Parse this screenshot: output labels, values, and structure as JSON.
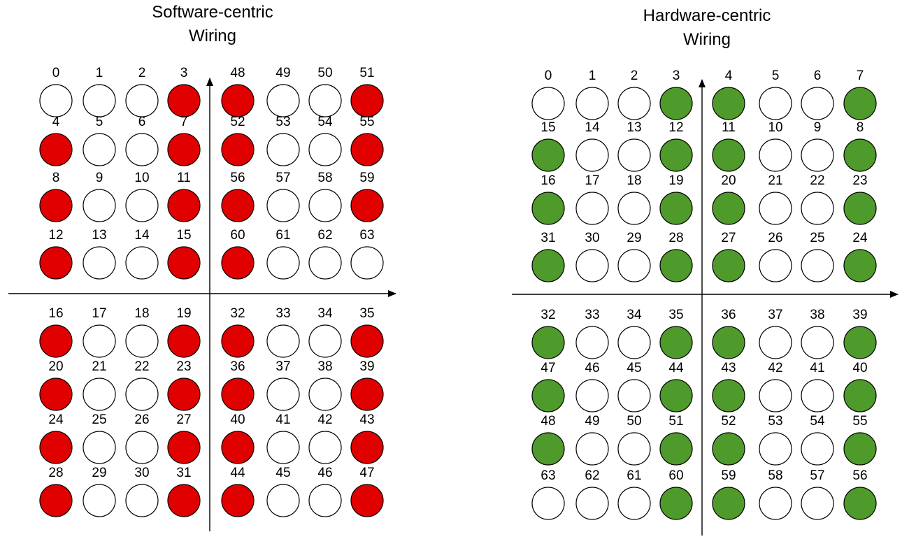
{
  "colors": {
    "red": "#e00000",
    "green": "#4e9a2b",
    "off": "#ffffff",
    "stroke": "#000000"
  },
  "panels": [
    {
      "id": "software",
      "title_line1": "Software-centric",
      "title_line2": "Wiring",
      "active_color": "red",
      "quadrants": [
        {
          "cells": [
            {
              "n": "0",
              "on": false
            },
            {
              "n": "1",
              "on": false
            },
            {
              "n": "2",
              "on": false
            },
            {
              "n": "3",
              "on": true
            },
            {
              "n": "4",
              "on": true
            },
            {
              "n": "5",
              "on": false
            },
            {
              "n": "6",
              "on": false
            },
            {
              "n": "7",
              "on": true
            },
            {
              "n": "8",
              "on": true
            },
            {
              "n": "9",
              "on": false
            },
            {
              "n": "10",
              "on": false
            },
            {
              "n": "11",
              "on": true
            },
            {
              "n": "12",
              "on": true
            },
            {
              "n": "13",
              "on": false
            },
            {
              "n": "14",
              "on": false
            },
            {
              "n": "15",
              "on": true
            }
          ]
        },
        {
          "cells": [
            {
              "n": "48",
              "on": true
            },
            {
              "n": "49",
              "on": false
            },
            {
              "n": "50",
              "on": false
            },
            {
              "n": "51",
              "on": true
            },
            {
              "n": "52",
              "on": true
            },
            {
              "n": "53",
              "on": false
            },
            {
              "n": "54",
              "on": false
            },
            {
              "n": "55",
              "on": true
            },
            {
              "n": "56",
              "on": true
            },
            {
              "n": "57",
              "on": false
            },
            {
              "n": "58",
              "on": false
            },
            {
              "n": "59",
              "on": true
            },
            {
              "n": "60",
              "on": true
            },
            {
              "n": "61",
              "on": false
            },
            {
              "n": "62",
              "on": false
            },
            {
              "n": "63",
              "on": false
            }
          ]
        },
        {
          "cells": [
            {
              "n": "16",
              "on": true
            },
            {
              "n": "17",
              "on": false
            },
            {
              "n": "18",
              "on": false
            },
            {
              "n": "19",
              "on": true
            },
            {
              "n": "20",
              "on": true
            },
            {
              "n": "21",
              "on": false
            },
            {
              "n": "22",
              "on": false
            },
            {
              "n": "23",
              "on": true
            },
            {
              "n": "24",
              "on": true
            },
            {
              "n": "25",
              "on": false
            },
            {
              "n": "26",
              "on": false
            },
            {
              "n": "27",
              "on": true
            },
            {
              "n": "28",
              "on": true
            },
            {
              "n": "29",
              "on": false
            },
            {
              "n": "30",
              "on": false
            },
            {
              "n": "31",
              "on": true
            }
          ]
        },
        {
          "cells": [
            {
              "n": "32",
              "on": true
            },
            {
              "n": "33",
              "on": false
            },
            {
              "n": "34",
              "on": false
            },
            {
              "n": "35",
              "on": true
            },
            {
              "n": "36",
              "on": true
            },
            {
              "n": "37",
              "on": false
            },
            {
              "n": "38",
              "on": false
            },
            {
              "n": "39",
              "on": true
            },
            {
              "n": "40",
              "on": true
            },
            {
              "n": "41",
              "on": false
            },
            {
              "n": "42",
              "on": false
            },
            {
              "n": "43",
              "on": true
            },
            {
              "n": "44",
              "on": true
            },
            {
              "n": "45",
              "on": false
            },
            {
              "n": "46",
              "on": false
            },
            {
              "n": "47",
              "on": true
            }
          ]
        }
      ]
    },
    {
      "id": "hardware",
      "title_line1": "Hardware-centric",
      "title_line2": "Wiring",
      "active_color": "green",
      "quadrants": [
        {
          "cells": [
            {
              "n": "0",
              "on": false
            },
            {
              "n": "1",
              "on": false
            },
            {
              "n": "2",
              "on": false
            },
            {
              "n": "3",
              "on": true
            },
            {
              "n": "15",
              "on": true
            },
            {
              "n": "14",
              "on": false
            },
            {
              "n": "13",
              "on": false
            },
            {
              "n": "12",
              "on": true
            },
            {
              "n": "16",
              "on": true
            },
            {
              "n": "17",
              "on": false
            },
            {
              "n": "18",
              "on": false
            },
            {
              "n": "19",
              "on": true
            },
            {
              "n": "31",
              "on": true
            },
            {
              "n": "30",
              "on": false
            },
            {
              "n": "29",
              "on": false
            },
            {
              "n": "28",
              "on": true
            }
          ]
        },
        {
          "cells": [
            {
              "n": "4",
              "on": true
            },
            {
              "n": "5",
              "on": false
            },
            {
              "n": "6",
              "on": false
            },
            {
              "n": "7",
              "on": true
            },
            {
              "n": "11",
              "on": true
            },
            {
              "n": "10",
              "on": false
            },
            {
              "n": "9",
              "on": false
            },
            {
              "n": "8",
              "on": true
            },
            {
              "n": "20",
              "on": true
            },
            {
              "n": "21",
              "on": false
            },
            {
              "n": "22",
              "on": false
            },
            {
              "n": "23",
              "on": true
            },
            {
              "n": "27",
              "on": true
            },
            {
              "n": "26",
              "on": false
            },
            {
              "n": "25",
              "on": false
            },
            {
              "n": "24",
              "on": true
            }
          ]
        },
        {
          "cells": [
            {
              "n": "32",
              "on": true
            },
            {
              "n": "33",
              "on": false
            },
            {
              "n": "34",
              "on": false
            },
            {
              "n": "35",
              "on": true
            },
            {
              "n": "47",
              "on": true
            },
            {
              "n": "46",
              "on": false
            },
            {
              "n": "45",
              "on": false
            },
            {
              "n": "44",
              "on": true
            },
            {
              "n": "48",
              "on": true
            },
            {
              "n": "49",
              "on": false
            },
            {
              "n": "50",
              "on": false
            },
            {
              "n": "51",
              "on": true
            },
            {
              "n": "63",
              "on": false
            },
            {
              "n": "62",
              "on": false
            },
            {
              "n": "61",
              "on": false
            },
            {
              "n": "60",
              "on": true
            }
          ]
        },
        {
          "cells": [
            {
              "n": "36",
              "on": true
            },
            {
              "n": "37",
              "on": false
            },
            {
              "n": "38",
              "on": false
            },
            {
              "n": "39",
              "on": true
            },
            {
              "n": "43",
              "on": true
            },
            {
              "n": "42",
              "on": false
            },
            {
              "n": "41",
              "on": false
            },
            {
              "n": "40",
              "on": true
            },
            {
              "n": "52",
              "on": true
            },
            {
              "n": "53",
              "on": false
            },
            {
              "n": "54",
              "on": false
            },
            {
              "n": "55",
              "on": true
            },
            {
              "n": "59",
              "on": true
            },
            {
              "n": "58",
              "on": false
            },
            {
              "n": "57",
              "on": false
            },
            {
              "n": "56",
              "on": true
            }
          ]
        }
      ]
    }
  ]
}
